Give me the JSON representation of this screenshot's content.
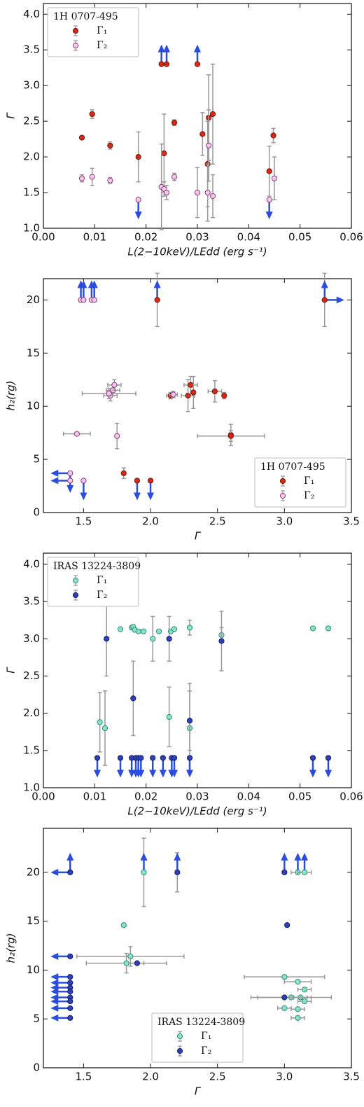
{
  "chart_data": [
    {
      "type": "scatter",
      "legend_title": "1H 0707-495",
      "legend": "upper left",
      "xlabel": "L(2−10keV)/LEdd (erg s⁻¹)",
      "ylabel": "Γ",
      "xlim": [
        0,
        0.06
      ],
      "ylim": [
        1,
        4.15
      ],
      "xticks": [
        {
          "value": 0,
          "label": "0.00"
        },
        {
          "value": 0.01,
          "label": "0.01"
        },
        {
          "value": 0.02,
          "label": "0.02"
        },
        {
          "value": 0.03,
          "label": "0.03"
        },
        {
          "value": 0.04,
          "label": "0.04"
        },
        {
          "value": 0.05,
          "label": "0.05"
        },
        {
          "value": 0.06,
          "label": "0.06"
        }
      ],
      "yticks": [
        {
          "value": 1,
          "label": "1.0"
        },
        1.5,
        {
          "value": 2,
          "label": "2.0"
        },
        2.5,
        {
          "value": 3,
          "label": "3.0"
        },
        3.5,
        {
          "value": 4,
          "label": "4.0"
        }
      ],
      "series": [
        {
          "name": "Γ₁",
          "color": "#d42a16",
          "edgecolor": "#7a1208",
          "x": [
            0.0075,
            0.0095,
            0.013,
            0.0185,
            0.023,
            0.0235,
            0.024,
            0.0255,
            0.03,
            0.031,
            0.032,
            0.0322,
            0.033,
            0.044,
            0.0448
          ],
          "values": [
            2.27,
            2.6,
            2.16,
            2.0,
            3.3,
            2.05,
            3.3,
            2.48,
            3.3,
            2.32,
            1.9,
            2.55,
            2.6,
            1.8,
            2.3
          ],
          "yerr": [
            null,
            0.06,
            0.05,
            0.35,
            null,
            0.55,
            null,
            0.04,
            null,
            0.3,
            0.6,
            0.6,
            0.7,
            0.35,
            0.1
          ],
          "limits": [
            null,
            null,
            null,
            null,
            "up",
            null,
            "up",
            null,
            "up",
            null,
            null,
            null,
            null,
            null,
            null
          ]
        },
        {
          "name": "Γ₂",
          "color": "#f4c8ea",
          "edgecolor": "#8a3d80",
          "x": [
            0.0075,
            0.0095,
            0.013,
            0.0185,
            0.023,
            0.0235,
            0.024,
            0.0255,
            0.03,
            0.032,
            0.0322,
            0.033,
            0.044,
            0.045
          ],
          "values": [
            1.7,
            1.72,
            1.67,
            1.4,
            1.58,
            1.55,
            1.5,
            1.72,
            1.5,
            1.5,
            2.16,
            1.45,
            1.4,
            1.7
          ],
          "yerr": [
            0.05,
            0.12,
            0.04,
            null,
            0.6,
            0.1,
            0.1,
            0.05,
            0.35,
            0.4,
            0.5,
            0.3,
            null,
            0.3
          ],
          "limits": [
            null,
            null,
            null,
            "down",
            null,
            null,
            null,
            null,
            null,
            null,
            null,
            null,
            "down",
            null
          ]
        }
      ]
    },
    {
      "type": "scatter",
      "legend_title": "1H 0707-495",
      "legend": "lower right",
      "xlabel": "Γ",
      "ylabel": "h₂(rg)",
      "xlim": [
        1.2,
        3.5
      ],
      "ylim": [
        0,
        22
      ],
      "xticks": [
        1.5,
        {
          "value": 2,
          "label": "2.0"
        },
        2.5,
        {
          "value": 3,
          "label": "3.0"
        },
        3.5
      ],
      "yticks": [
        0,
        5,
        10,
        15,
        20
      ],
      "series": [
        {
          "name": "Γ₁",
          "color": "#d42a16",
          "edgecolor": "#7a1208",
          "x": [
            2.05,
            3.3,
            2.28,
            2.3,
            2.32,
            2.48,
            2.55,
            2.6,
            2.6,
            2.15,
            1.8,
            1.9,
            2.0
          ],
          "values": [
            20,
            20,
            11,
            12,
            11.3,
            11.4,
            11,
            7.3,
            7.2,
            11,
            3.7,
            3,
            3
          ],
          "yerr": [
            2.5,
            2.5,
            1.5,
            0.8,
            1.5,
            1,
            0.3,
            1,
            0.5,
            0.3,
            0.5,
            null,
            null
          ],
          "xerr": [
            null,
            null,
            0.05,
            0.05,
            null,
            0.05,
            null,
            null,
            0.25,
            0.03,
            null,
            null,
            null
          ],
          "limits": [
            "up",
            "up right",
            null,
            null,
            null,
            null,
            null,
            null,
            null,
            null,
            null,
            "down",
            "down"
          ]
        },
        {
          "name": "Γ₂",
          "color": "#f4c8ea",
          "edgecolor": "#8a3d80",
          "x": [
            1.48,
            1.5,
            1.56,
            1.58,
            1.7,
            1.72,
            1.73,
            1.69,
            1.75,
            1.45,
            1.4,
            1.4,
            1.5,
            2.17
          ],
          "values": [
            20,
            20,
            20,
            20,
            11,
            11.5,
            12,
            11.2,
            7.2,
            7.4,
            3.7,
            3,
            3,
            11.1
          ],
          "yerr": [
            null,
            null,
            null,
            null,
            0.5,
            0.5,
            0.5,
            0.5,
            1.2,
            null,
            null,
            null,
            null,
            0.3
          ],
          "xerr": [
            null,
            null,
            null,
            null,
            0.05,
            0.05,
            0.05,
            0.2,
            null,
            0.1,
            null,
            null,
            null,
            0.03
          ],
          "limits": [
            "up",
            "up",
            "up",
            "up",
            null,
            null,
            null,
            null,
            null,
            null,
            "left down",
            "left",
            "down",
            null
          ]
        }
      ]
    },
    {
      "type": "scatter",
      "legend_title": "IRAS 13224-3809",
      "legend": "upper left",
      "xlabel": "L(2−10keV)/LEdd (erg s⁻¹)",
      "ylabel": "Γ",
      "xlim": [
        0,
        0.06
      ],
      "ylim": [
        1,
        4.15
      ],
      "xticks": [
        {
          "value": 0,
          "label": "0.00"
        },
        {
          "value": 0.01,
          "label": "0.01"
        },
        {
          "value": 0.02,
          "label": "0.02"
        },
        {
          "value": 0.03,
          "label": "0.03"
        },
        {
          "value": 0.04,
          "label": "0.04"
        },
        {
          "value": 0.05,
          "label": "0.05"
        },
        {
          "value": 0.06,
          "label": "0.06"
        }
      ],
      "yticks": [
        {
          "value": 1,
          "label": "1.0"
        },
        1.5,
        {
          "value": 2,
          "label": "2.0"
        },
        2.5,
        {
          "value": 3,
          "label": "3.0"
        },
        3.5,
        {
          "value": 4,
          "label": "4.0"
        }
      ],
      "series": [
        {
          "name": "Γ₁",
          "color": "#86e6cc",
          "edgecolor": "#2f8a74",
          "x": [
            0.011,
            0.012,
            0.015,
            0.0172,
            0.0175,
            0.0178,
            0.0185,
            0.0195,
            0.0213,
            0.0225,
            0.0245,
            0.0248,
            0.0255,
            0.0285,
            0.0285,
            0.0347,
            0.0525,
            0.0555
          ],
          "values": [
            1.88,
            1.8,
            3.13,
            3.15,
            3.16,
            3.12,
            3.1,
            3.1,
            3.0,
            3.1,
            1.95,
            3.1,
            3.13,
            1.8,
            3.15,
            3.05,
            3.14,
            3.14
          ],
          "yerr": [
            0.4,
            0.5,
            null,
            null,
            null,
            null,
            null,
            null,
            0.3,
            null,
            0.4,
            null,
            null,
            0.6,
            0.1,
            0.1,
            null,
            null
          ],
          "limits": [
            null,
            null,
            null,
            null,
            null,
            null,
            null,
            null,
            null,
            null,
            null,
            null,
            null,
            null,
            null,
            null,
            null,
            null
          ]
        },
        {
          "name": "Γ₂",
          "color": "#2e3fb8",
          "edgecolor": "#141e66",
          "x": [
            0.0105,
            0.0123,
            0.015,
            0.0172,
            0.0175,
            0.018,
            0.0185,
            0.019,
            0.0213,
            0.0233,
            0.0245,
            0.025,
            0.0255,
            0.0285,
            0.0285,
            0.0347,
            0.0525,
            0.0555
          ],
          "values": [
            1.4,
            3.0,
            1.4,
            1.4,
            2.2,
            1.4,
            1.4,
            1.4,
            1.4,
            1.4,
            3.0,
            1.4,
            1.4,
            1.9,
            1.4,
            2.97,
            1.4,
            1.4
          ],
          "yerr": [
            null,
            0.5,
            null,
            null,
            0.5,
            null,
            null,
            null,
            null,
            null,
            0.3,
            null,
            null,
            0.4,
            null,
            0.4,
            null,
            null
          ],
          "limits": [
            "down",
            null,
            "down",
            "down",
            null,
            "down",
            "down",
            "down",
            "down",
            "down",
            null,
            "down",
            "down",
            null,
            "down",
            null,
            "down",
            "down"
          ]
        }
      ]
    },
    {
      "type": "scatter",
      "legend_title": "IRAS 13224-3809",
      "legend": "lower center",
      "xlabel": "Γ",
      "ylabel": "h₂(rg)",
      "xlim": [
        1.2,
        3.5
      ],
      "ylim": [
        0,
        24.5
      ],
      "xticks": [
        1.5,
        {
          "value": 2,
          "label": "2.0"
        },
        2.5,
        {
          "value": 3,
          "label": "3.0"
        },
        3.5
      ],
      "yticks": [
        0,
        5,
        10,
        15,
        20
      ],
      "series": [
        {
          "name": "Γ₁",
          "color": "#86e6cc",
          "edgecolor": "#2f8a74",
          "x": [
            1.95,
            3.1,
            3.15,
            1.8,
            1.85,
            1.82,
            3.0,
            3.1,
            3.15,
            3.12,
            3.05,
            3.15,
            3.0,
            3.1,
            3.1
          ],
          "values": [
            20,
            20,
            20,
            14.6,
            11.4,
            10.7,
            9.3,
            8.8,
            8,
            7.2,
            7.2,
            6.8,
            6.1,
            6.0,
            5.1
          ],
          "yerr": [
            3.5,
            null,
            null,
            null,
            1,
            1,
            null,
            null,
            null,
            null,
            null,
            null,
            null,
            null,
            null
          ],
          "xerr": [
            null,
            0.05,
            0.05,
            null,
            0.4,
            0.3,
            0.3,
            0.1,
            0.05,
            0.05,
            0.3,
            0.05,
            0.05,
            0.05,
            0.05
          ],
          "limits": [
            "up",
            "up",
            "up",
            null,
            null,
            null,
            null,
            null,
            null,
            null,
            null,
            null,
            null,
            null,
            null
          ]
        },
        {
          "name": "Γ₂",
          "color": "#2e3fb8",
          "edgecolor": "#141e66",
          "x": [
            1.4,
            2.2,
            3.0,
            3.02,
            1.4,
            1.9,
            1.4,
            1.4,
            1.4,
            1.4,
            1.4,
            1.4,
            1.4,
            1.4,
            3.0
          ],
          "values": [
            20,
            20,
            20,
            14.6,
            11.4,
            10.7,
            9.3,
            8.7,
            8.2,
            7.8,
            7.2,
            6.8,
            6.1,
            5.1,
            7.2
          ],
          "yerr": [
            null,
            2,
            null,
            null,
            null,
            null,
            null,
            null,
            null,
            null,
            null,
            null,
            null,
            null,
            null
          ],
          "xerr": [
            null,
            null,
            null,
            null,
            null,
            0.05,
            null,
            null,
            null,
            null,
            null,
            null,
            null,
            null,
            0.2
          ],
          "limits": [
            "left up",
            "up",
            "up",
            null,
            "left",
            null,
            "left",
            "left",
            "left",
            "left",
            "left",
            "left",
            "left",
            "left",
            null
          ]
        }
      ]
    }
  ]
}
